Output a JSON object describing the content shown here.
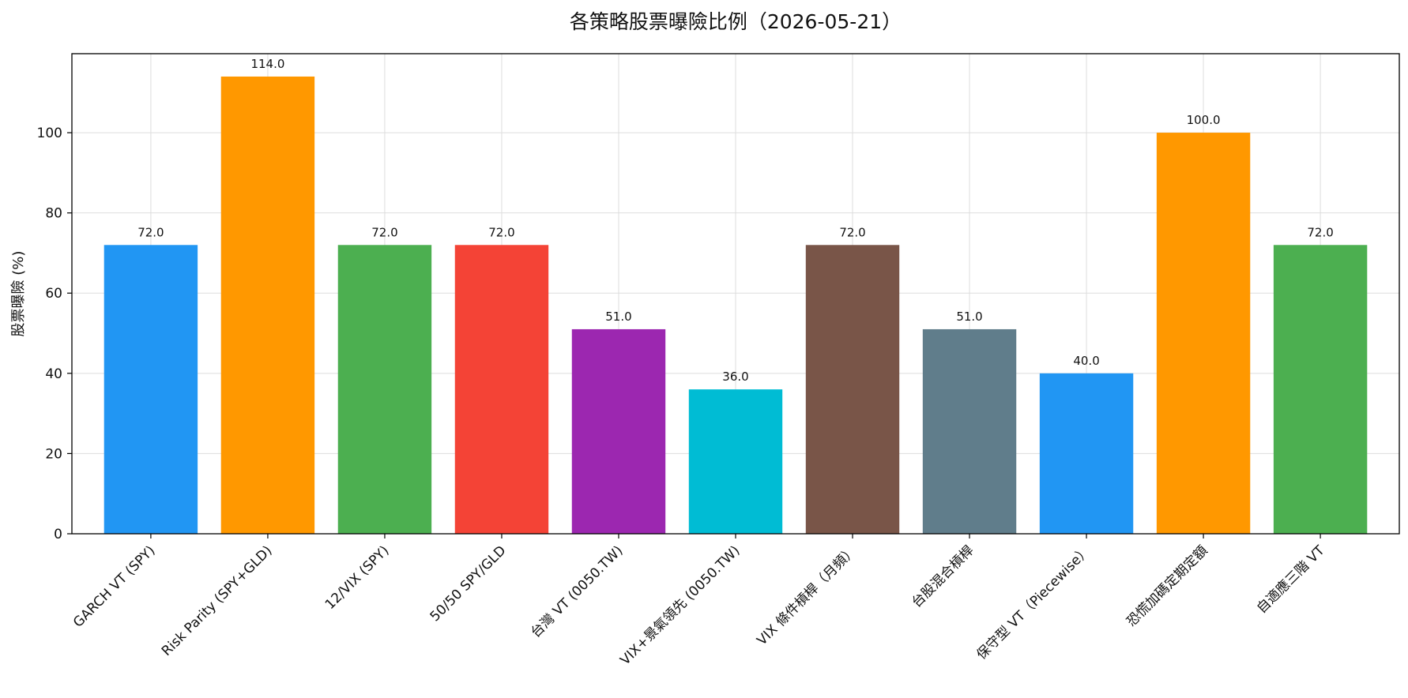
{
  "chart_data": {
    "type": "bar",
    "title": "各策略股票曝險比例（2026-05-21）",
    "xlabel": "",
    "ylabel": "股票曝險 (%)",
    "ylim": [
      0,
      119.7
    ],
    "yticks": [
      0,
      20,
      40,
      60,
      80,
      100
    ],
    "grid": true,
    "categories": [
      "GARCH VT (SPY)",
      "Risk Parity (SPY+GLD)",
      "12/VIX (SPY)",
      "50/50 SPY/GLD",
      "台灣 VT (0050.TW)",
      "VIX+景氣領先 (0050.TW)",
      "VIX 條件槓桿（月頻）",
      "台股混合槓桿",
      "保守型 VT（Piecewise）",
      "恐慌加碼定期定額",
      "自適應三階 VT"
    ],
    "values": [
      72.0,
      114.0,
      72.0,
      72.0,
      51.0,
      36.0,
      72.0,
      51.0,
      40.0,
      100.0,
      72.0
    ],
    "value_labels": [
      "72.0",
      "114.0",
      "72.0",
      "72.0",
      "51.0",
      "36.0",
      "72.0",
      "51.0",
      "40.0",
      "100.0",
      "72.0"
    ],
    "colors": [
      "#2196F3",
      "#FF9800",
      "#4CAF50",
      "#F44336",
      "#9C27B0",
      "#00BCD4",
      "#795548",
      "#607D8B",
      "#2196F3",
      "#FF9800",
      "#4CAF50"
    ]
  }
}
